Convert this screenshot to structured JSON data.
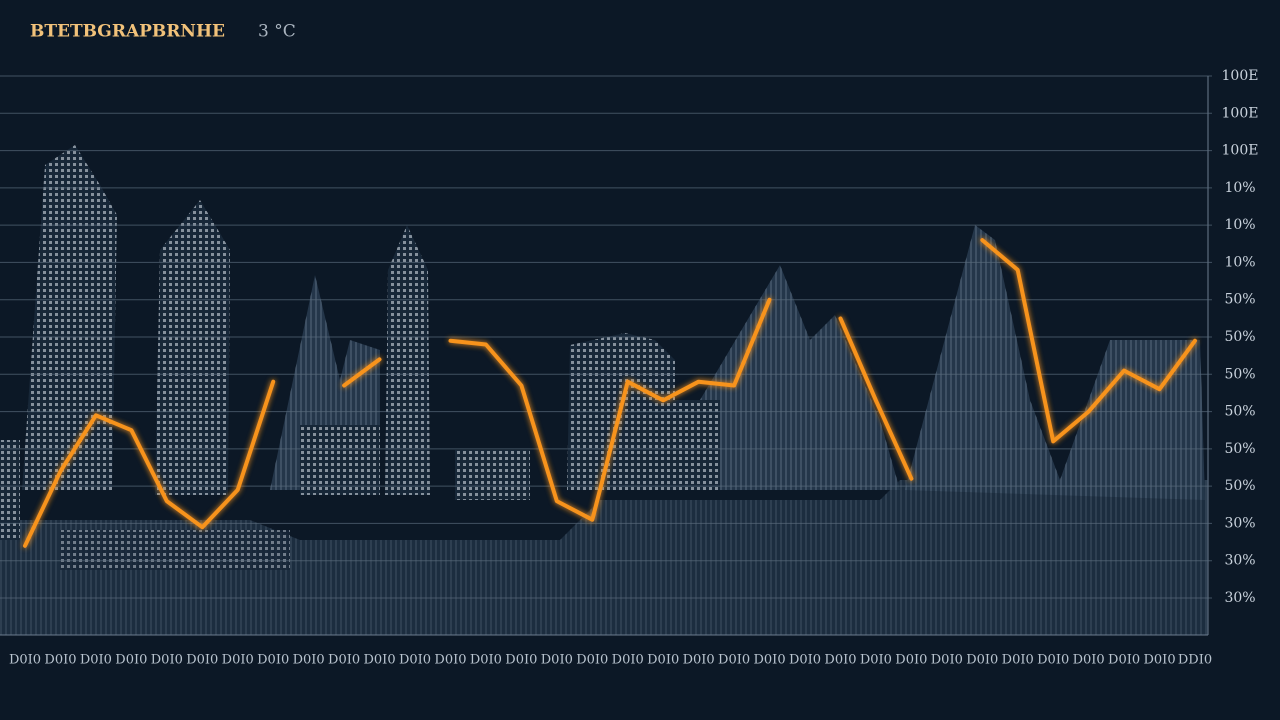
{
  "chart_data": {
    "type": "line",
    "title": "BTETBGRAPBRNHE",
    "subtitle": "3 °C",
    "color": "#f7931e",
    "grid": true,
    "categories": [
      "D0I0",
      "D0I0",
      "D0I0",
      "D0I0",
      "D0I0",
      "D0I0",
      "D0I0",
      "D0I0",
      "D0I0",
      "D0I0",
      "D0I0",
      "D0I0",
      "D0I0",
      "D0I0",
      "D0I0",
      "D0I0",
      "D0I0",
      "D0I0",
      "D0I0",
      "D0I0",
      "D0I0",
      "D0I0",
      "D0I0",
      "D0I0",
      "D0I0",
      "D0I0",
      "D0I0",
      "D0I0",
      "D0I0",
      "D0I0",
      "D0I0",
      "D0I0",
      "D0I0",
      "DDI0"
    ],
    "values": [
      1.4,
      3.4,
      4.9,
      4.5,
      2.6,
      1.9,
      2.9,
      5.8,
      null,
      5.7,
      6.4,
      null,
      6.9,
      6.8,
      5.7,
      2.6,
      2.1,
      5.8,
      5.3,
      5.8,
      5.7,
      8.0,
      null,
      7.5,
      5.3,
      3.2,
      null,
      9.6,
      8.8,
      4.2,
      5.0,
      6.1,
      5.6,
      6.9
    ],
    "ylim": [
      0,
      14
    ],
    "yticks": [
      {
        "value": 0,
        "label": "30%"
      },
      {
        "value": 1,
        "label": "30%"
      },
      {
        "value": 2,
        "label": "30%"
      },
      {
        "value": 3,
        "label": "50%"
      },
      {
        "value": 4,
        "label": "50%"
      },
      {
        "value": 5,
        "label": "50%"
      },
      {
        "value": 6,
        "label": "50%"
      },
      {
        "value": 7,
        "label": "50%"
      },
      {
        "value": 8,
        "label": "50%"
      },
      {
        "value": 9,
        "label": "10%"
      },
      {
        "value": 10,
        "label": "10%"
      },
      {
        "value": 11,
        "label": "10%"
      },
      {
        "value": 12,
        "label": "100E"
      },
      {
        "value": 13,
        "label": "100E"
      },
      {
        "value": 14,
        "label": "100E"
      }
    ]
  }
}
